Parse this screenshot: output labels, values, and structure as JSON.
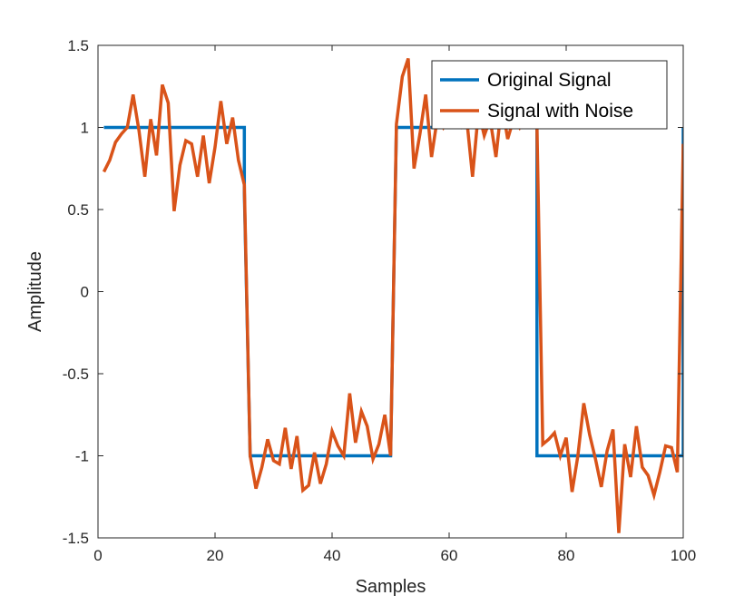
{
  "chart_data": {
    "type": "line",
    "xlabel": "Samples",
    "ylabel": "Amplitude",
    "xlim": [
      0,
      100
    ],
    "ylim": [
      -1.5,
      1.5
    ],
    "xticks": [
      0,
      20,
      40,
      60,
      80,
      100
    ],
    "xtick_labels": [
      "0",
      "20",
      "40",
      "60",
      "80",
      "100"
    ],
    "yticks": [
      -1.5,
      -1,
      -0.5,
      0,
      0.5,
      1,
      1.5
    ],
    "ytick_labels": [
      "-1.5",
      "-1",
      "-0.5",
      "0",
      "0.5",
      "1",
      "1.5"
    ],
    "grid": false,
    "legend_position": "top-right",
    "series": [
      {
        "name": "Original Signal",
        "color": "#0072BD",
        "x": [
          1,
          25,
          25,
          26,
          26,
          50,
          50,
          51,
          51,
          75,
          75,
          76,
          76,
          100,
          100
        ],
        "y": [
          1,
          1,
          0.6,
          -1,
          -1,
          -1,
          -1,
          1,
          1,
          1,
          -1,
          -1,
          -1,
          -1,
          1
        ]
      },
      {
        "name": "Signal with Noise",
        "color": "#D95319",
        "x": [
          1,
          2,
          3,
          4,
          5,
          6,
          7,
          8,
          9,
          10,
          11,
          12,
          13,
          14,
          15,
          16,
          17,
          18,
          19,
          20,
          21,
          22,
          23,
          24,
          25,
          26,
          27,
          28,
          29,
          30,
          31,
          32,
          33,
          34,
          35,
          36,
          37,
          38,
          39,
          40,
          41,
          42,
          43,
          44,
          45,
          46,
          47,
          48,
          49,
          50,
          51,
          52,
          53,
          54,
          55,
          56,
          57,
          58,
          59,
          60,
          61,
          62,
          63,
          64,
          65,
          66,
          67,
          68,
          69,
          70,
          71,
          72,
          73,
          74,
          75,
          76,
          77,
          78,
          79,
          80,
          81,
          82,
          83,
          84,
          85,
          86,
          87,
          88,
          89,
          90,
          91,
          92,
          93,
          94,
          95,
          96,
          97,
          98,
          99,
          100
        ],
        "y": [
          0.73,
          0.8,
          0.91,
          0.96,
          1.0,
          1.2,
          0.98,
          0.7,
          1.05,
          0.83,
          1.26,
          1.15,
          0.49,
          0.77,
          0.92,
          0.9,
          0.7,
          0.95,
          0.66,
          0.88,
          1.16,
          0.9,
          1.06,
          0.8,
          0.65,
          -1.0,
          -1.2,
          -1.07,
          -0.9,
          -1.03,
          -1.05,
          -0.83,
          -1.08,
          -0.88,
          -1.21,
          -1.18,
          -0.98,
          -1.17,
          -1.05,
          -0.85,
          -0.94,
          -1.0,
          -0.62,
          -0.92,
          -0.73,
          -0.82,
          -1.02,
          -0.93,
          -0.75,
          -1.0,
          1.02,
          1.31,
          1.42,
          0.75,
          0.96,
          1.2,
          0.82,
          1.06,
          1.0,
          1.08,
          1.02,
          1.0,
          1.05,
          0.7,
          1.1,
          0.95,
          1.05,
          0.82,
          1.15,
          0.93,
          1.05,
          1.0,
          1.1,
          1.0,
          1.0,
          -0.93,
          -0.9,
          -0.86,
          -1.0,
          -0.89,
          -1.22,
          -1.0,
          -0.68,
          -0.87,
          -1.02,
          -1.19,
          -0.97,
          -0.84,
          -1.47,
          -0.93,
          -1.13,
          -0.82,
          -1.07,
          -1.12,
          -1.24,
          -1.1,
          -0.94,
          -0.95,
          -1.1,
          0.9
        ]
      }
    ]
  }
}
